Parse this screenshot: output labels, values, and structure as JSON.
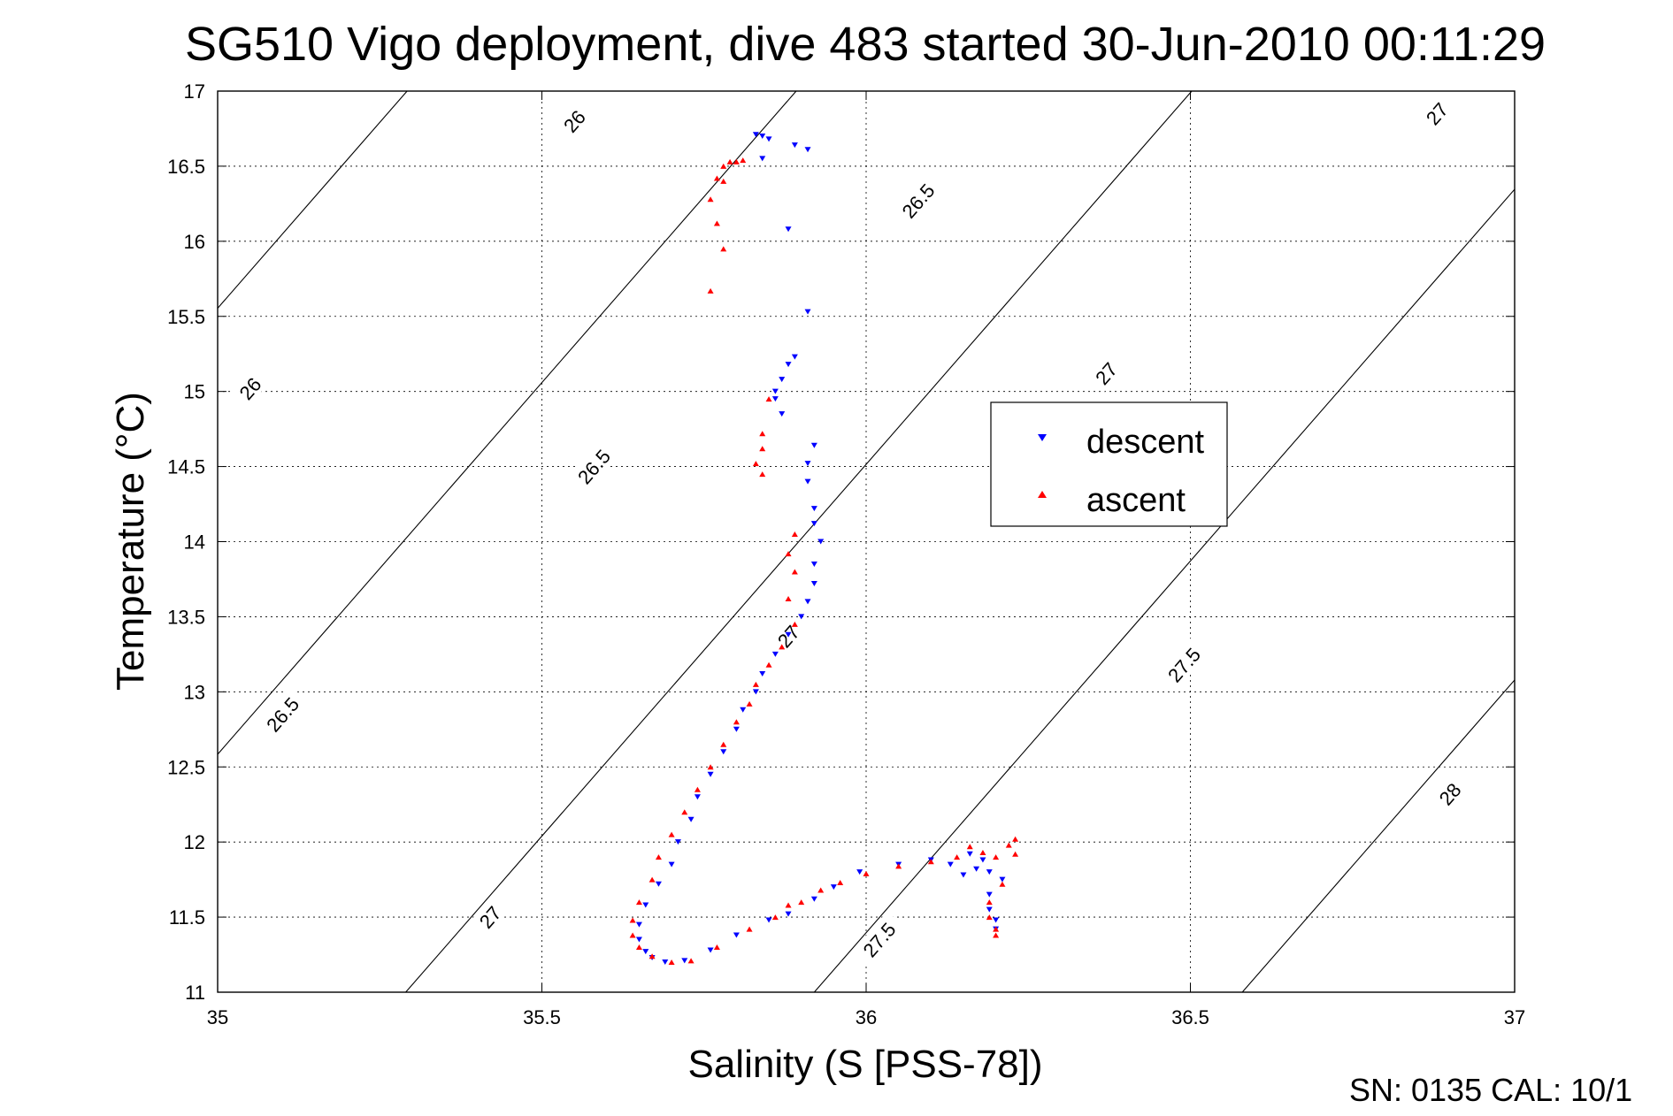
{
  "chart_data": {
    "type": "scatter",
    "title": "SG510 Vigo deployment, dive 483 started 30-Jun-2010 00:11:29",
    "xlabel": "Salinity (S [PSS-78])",
    "ylabel": "Temperature (°C)",
    "xlim": [
      35,
      37
    ],
    "ylim": [
      11,
      17
    ],
    "xticks": [
      35,
      35.5,
      36,
      36.5,
      37
    ],
    "yticks": [
      11,
      11.5,
      12,
      12.5,
      13,
      13.5,
      14,
      14.5,
      15,
      15.5,
      16,
      16.5,
      17
    ],
    "x_tick_labels": [
      "35",
      "35.5",
      "36",
      "36.5",
      "37"
    ],
    "y_tick_labels": [
      "11",
      "11.5",
      "12",
      "12.5",
      "13",
      "13.5",
      "14",
      "14.5",
      "15",
      "15.5",
      "16",
      "16.5",
      "17"
    ],
    "grid": true,
    "legend_position": "center-right",
    "density_contours": [
      {
        "sigma": 26,
        "s_at_t11": 34.08,
        "slope_dT_dS": 4.95,
        "labels": [
          {
            "text": "26",
            "s": 35.55,
            "t": 16.8
          },
          {
            "text": "26",
            "s": 35.05,
            "t": 15.02
          }
        ]
      },
      {
        "sigma": 26.5,
        "s_at_t11": 34.68,
        "slope_dT_dS": 4.95,
        "labels": [
          {
            "text": "26.5",
            "s": 36.08,
            "t": 16.27
          },
          {
            "text": "26.5",
            "s": 35.58,
            "t": 14.5
          },
          {
            "text": "26.5",
            "s": 35.1,
            "t": 12.85
          }
        ]
      },
      {
        "sigma": 27,
        "s_at_t11": 35.29,
        "slope_dT_dS": 4.95,
        "labels": [
          {
            "text": "27",
            "s": 36.88,
            "t": 16.85
          },
          {
            "text": "27",
            "s": 36.37,
            "t": 15.12
          },
          {
            "text": "27",
            "s": 35.88,
            "t": 13.37
          },
          {
            "text": "27",
            "s": 35.42,
            "t": 11.5
          }
        ]
      },
      {
        "sigma": 27.5,
        "s_at_t11": 35.92,
        "slope_dT_dS": 4.95,
        "labels": [
          {
            "text": "27.5",
            "s": 36.49,
            "t": 13.18
          },
          {
            "text": "27.5",
            "s": 36.02,
            "t": 11.35
          }
        ]
      },
      {
        "sigma": 28,
        "s_at_t11": 36.58,
        "slope_dT_dS": 4.95,
        "labels": [
          {
            "text": "28",
            "s": 36.9,
            "t": 12.32
          }
        ]
      }
    ],
    "series": [
      {
        "name": "descent",
        "color": "#0000ff",
        "marker": "triangle-down",
        "points": [
          [
            35.83,
            16.71
          ],
          [
            35.84,
            16.7
          ],
          [
            35.85,
            16.68
          ],
          [
            35.89,
            16.64
          ],
          [
            35.91,
            16.61
          ],
          [
            35.84,
            16.55
          ],
          [
            35.88,
            16.08
          ],
          [
            35.91,
            15.53
          ],
          [
            35.89,
            15.23
          ],
          [
            35.88,
            15.18
          ],
          [
            35.87,
            15.08
          ],
          [
            35.86,
            15.0
          ],
          [
            35.86,
            14.95
          ],
          [
            35.87,
            14.85
          ],
          [
            35.92,
            14.64
          ],
          [
            35.91,
            14.52
          ],
          [
            35.91,
            14.4
          ],
          [
            35.92,
            14.22
          ],
          [
            35.92,
            14.12
          ],
          [
            35.93,
            14.0
          ],
          [
            35.92,
            13.85
          ],
          [
            35.92,
            13.72
          ],
          [
            35.91,
            13.6
          ],
          [
            35.9,
            13.5
          ],
          [
            35.88,
            13.38
          ],
          [
            35.86,
            13.25
          ],
          [
            35.84,
            13.12
          ],
          [
            35.83,
            13.0
          ],
          [
            35.81,
            12.88
          ],
          [
            35.8,
            12.75
          ],
          [
            35.78,
            12.6
          ],
          [
            35.76,
            12.45
          ],
          [
            35.74,
            12.3
          ],
          [
            35.73,
            12.15
          ],
          [
            35.71,
            12.0
          ],
          [
            35.7,
            11.85
          ],
          [
            35.68,
            11.72
          ],
          [
            35.66,
            11.58
          ],
          [
            35.65,
            11.45
          ],
          [
            35.65,
            11.35
          ],
          [
            35.66,
            11.27
          ],
          [
            35.67,
            11.23
          ],
          [
            35.69,
            11.2
          ],
          [
            35.72,
            11.21
          ],
          [
            35.76,
            11.28
          ],
          [
            35.8,
            11.38
          ],
          [
            35.85,
            11.48
          ],
          [
            35.88,
            11.52
          ],
          [
            35.92,
            11.62
          ],
          [
            35.95,
            11.7
          ],
          [
            35.99,
            11.8
          ],
          [
            36.05,
            11.85
          ],
          [
            36.1,
            11.88
          ],
          [
            36.13,
            11.85
          ],
          [
            36.15,
            11.78
          ],
          [
            36.17,
            11.82
          ],
          [
            36.19,
            11.8
          ],
          [
            36.21,
            11.75
          ],
          [
            36.19,
            11.65
          ],
          [
            36.19,
            11.55
          ],
          [
            36.2,
            11.48
          ],
          [
            36.2,
            11.42
          ],
          [
            36.18,
            11.88
          ],
          [
            36.16,
            11.92
          ]
        ]
      },
      {
        "name": "ascent",
        "color": "#ff0000",
        "marker": "triangle-up",
        "points": [
          [
            35.81,
            16.54
          ],
          [
            35.8,
            16.53
          ],
          [
            35.79,
            16.53
          ],
          [
            35.78,
            16.5
          ],
          [
            35.77,
            16.42
          ],
          [
            35.76,
            16.28
          ],
          [
            35.78,
            16.4
          ],
          [
            35.77,
            16.12
          ],
          [
            35.78,
            15.95
          ],
          [
            35.76,
            15.67
          ],
          [
            35.85,
            14.95
          ],
          [
            35.84,
            14.72
          ],
          [
            35.84,
            14.62
          ],
          [
            35.83,
            14.52
          ],
          [
            35.84,
            14.45
          ],
          [
            35.89,
            14.05
          ],
          [
            35.88,
            13.92
          ],
          [
            35.89,
            13.8
          ],
          [
            35.88,
            13.62
          ],
          [
            35.89,
            13.45
          ],
          [
            35.87,
            13.3
          ],
          [
            35.85,
            13.18
          ],
          [
            35.83,
            13.05
          ],
          [
            35.82,
            12.92
          ],
          [
            35.8,
            12.8
          ],
          [
            35.78,
            12.65
          ],
          [
            35.76,
            12.5
          ],
          [
            35.74,
            12.35
          ],
          [
            35.72,
            12.2
          ],
          [
            35.7,
            12.05
          ],
          [
            35.68,
            11.9
          ],
          [
            35.67,
            11.75
          ],
          [
            35.65,
            11.6
          ],
          [
            35.64,
            11.48
          ],
          [
            35.64,
            11.38
          ],
          [
            35.65,
            11.3
          ],
          [
            35.67,
            11.24
          ],
          [
            35.7,
            11.2
          ],
          [
            35.73,
            11.21
          ],
          [
            35.77,
            11.3
          ],
          [
            35.82,
            11.42
          ],
          [
            35.86,
            11.5
          ],
          [
            35.88,
            11.58
          ],
          [
            35.9,
            11.6
          ],
          [
            35.93,
            11.68
          ],
          [
            35.96,
            11.73
          ],
          [
            36.0,
            11.79
          ],
          [
            36.05,
            11.84
          ],
          [
            36.1,
            11.87
          ],
          [
            36.14,
            11.9
          ],
          [
            36.16,
            11.97
          ],
          [
            36.18,
            11.93
          ],
          [
            36.2,
            11.9
          ],
          [
            36.22,
            11.98
          ],
          [
            36.23,
            12.02
          ],
          [
            36.23,
            11.92
          ],
          [
            36.21,
            11.72
          ],
          [
            36.19,
            11.6
          ],
          [
            36.19,
            11.5
          ],
          [
            36.2,
            11.42
          ],
          [
            36.2,
            11.38
          ]
        ]
      }
    ]
  },
  "footer_text": "SN: 0135  CAL: 10/1"
}
